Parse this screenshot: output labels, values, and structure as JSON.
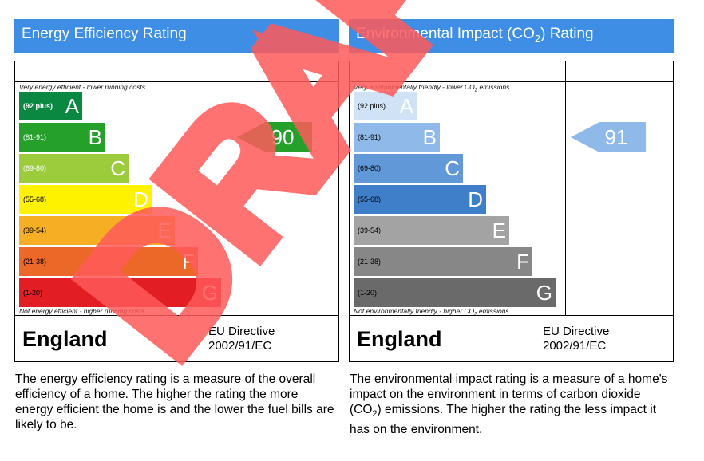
{
  "watermark": {
    "text": "DRAFT",
    "color": "#ff5a5a"
  },
  "energy": {
    "title": "Energy Efficiency Rating",
    "top_caption": "Very energy efficient - lower running costs",
    "bottom_caption": "Not energy efficient - higher running costs",
    "country": "England",
    "directive_line1": "EU Directive",
    "directive_line2": "2002/91/EC",
    "description": "The energy efficiency rating is a measure of the overall efficiency of a home. The higher the rating the more energy efficient the home is and the lower the fuel bills are likely to be.",
    "current_value": "90",
    "current_band": "B",
    "current_color": "#24a02b",
    "bands": [
      {
        "letter": "A",
        "range": "(92 plus)",
        "color": "#0a8740"
      },
      {
        "letter": "B",
        "range": "(81-91)",
        "color": "#24a02b"
      },
      {
        "letter": "C",
        "range": "(69-80)",
        "color": "#9ccb3b"
      },
      {
        "letter": "D",
        "range": "(55-68)",
        "color": "#fef200"
      },
      {
        "letter": "E",
        "range": "(39-54)",
        "color": "#f6ae24"
      },
      {
        "letter": "F",
        "range": "(21-38)",
        "color": "#ec6828"
      },
      {
        "letter": "G",
        "range": "(1-20)",
        "color": "#e31d24"
      }
    ]
  },
  "environment": {
    "title_prefix": "Environmental Impact (CO",
    "title_sub": "2",
    "title_suffix": ") Rating",
    "top_caption_prefix": "Very environmentally friendly - lower CO",
    "top_caption_sub": "2",
    "top_caption_suffix": " emissions",
    "bottom_caption_prefix": "Not environmentally friendly - higher CO",
    "bottom_caption_sub": "2",
    "bottom_caption_suffix": " emissions",
    "country": "England",
    "directive_line1": "EU Directive",
    "directive_line2": "2002/91/EC",
    "description_prefix": "The environmental impact rating is a measure of a home's impact on the environment in terms of carbon dioxide (CO",
    "description_sub": "2",
    "description_suffix": ") emissions. The higher the rating the less impact it has on the environment.",
    "current_value": "91",
    "current_band": "B",
    "current_color": "#8fb9e8",
    "bands": [
      {
        "letter": "A",
        "range": "(92 plus)",
        "color": "#cfe2f6"
      },
      {
        "letter": "B",
        "range": "(81-91)",
        "color": "#8fb9e8"
      },
      {
        "letter": "C",
        "range": "(69-80)",
        "color": "#6198d8"
      },
      {
        "letter": "D",
        "range": "(55-68)",
        "color": "#3f7ec8"
      },
      {
        "letter": "E",
        "range": "(39-54)",
        "color": "#a3a3a3"
      },
      {
        "letter": "F",
        "range": "(21-38)",
        "color": "#878787"
      },
      {
        "letter": "G",
        "range": "(1-20)",
        "color": "#6a6a6a"
      }
    ]
  },
  "chart_data": [
    {
      "type": "bar",
      "title": "Energy Efficiency Rating",
      "categories": [
        "A",
        "B",
        "C",
        "D",
        "E",
        "F",
        "G"
      ],
      "ranges": [
        "92 plus",
        "81-91",
        "69-80",
        "55-68",
        "39-54",
        "21-38",
        "1-20"
      ],
      "current": 90
    },
    {
      "type": "bar",
      "title": "Environmental Impact (CO2) Rating",
      "categories": [
        "A",
        "B",
        "C",
        "D",
        "E",
        "F",
        "G"
      ],
      "ranges": [
        "92 plus",
        "81-91",
        "69-80",
        "55-68",
        "39-54",
        "21-38",
        "1-20"
      ],
      "current": 91
    }
  ]
}
